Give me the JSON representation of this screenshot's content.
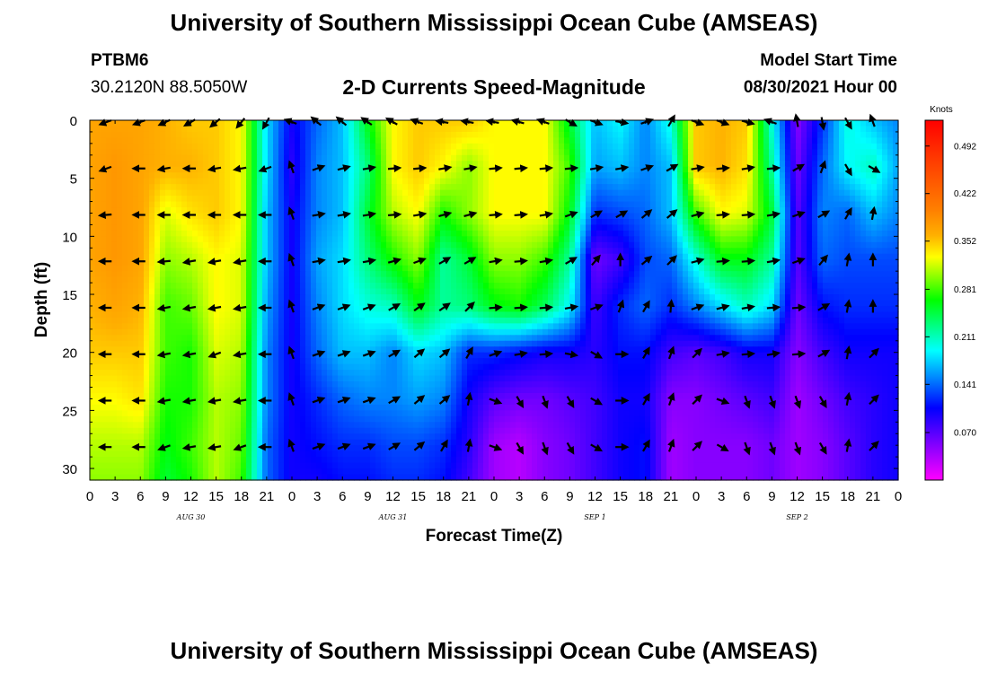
{
  "page": {
    "title_top": "University of Southern Mississippi Ocean Cube (AMSEAS)",
    "title_bottom": "University of Southern Mississippi Ocean Cube (AMSEAS)",
    "station_name": "PTBM6",
    "station_coords": "30.2120N  88.5050W",
    "plot_title": "2-D Currents Speed-Magnitude",
    "model_label": "Model Start Time",
    "model_time": "08/30/2021 Hour 00"
  },
  "colors": {
    "palette": [
      "#ff00ff",
      "#8000ff",
      "#0000ff",
      "#0080ff",
      "#00ffff",
      "#00ff80",
      "#00ff00",
      "#80ff00",
      "#ffff00",
      "#ffb000",
      "#ff8000",
      "#ff4000",
      "#ff0000"
    ]
  },
  "chart_data": {
    "type": "heatmap",
    "subtype": "depth-time current speed with direction arrows",
    "xlabel": "Forecast Time(Z)",
    "ylabel": "Depth (ft)",
    "colorbar_unit": "Knots",
    "x_range_hours": [
      0,
      96
    ],
    "y_range_ft": [
      0,
      31
    ],
    "x_tick_labels": [
      "0",
      "3",
      "6",
      "9",
      "12",
      "15",
      "18",
      "21",
      "0",
      "3",
      "6",
      "9",
      "12",
      "15",
      "18",
      "21",
      "0",
      "3",
      "6",
      "9",
      "12",
      "15",
      "18",
      "21",
      "0",
      "3",
      "6",
      "9",
      "12",
      "15",
      "18",
      "21",
      "0"
    ],
    "y_ticks": [
      0,
      5,
      10,
      15,
      20,
      25,
      30
    ],
    "day_labels": [
      {
        "hour": 12,
        "label": "AUG 30"
      },
      {
        "hour": 36,
        "label": "AUG 31"
      },
      {
        "hour": 60,
        "label": "SEP 1"
      },
      {
        "hour": 84,
        "label": "SEP 2"
      }
    ],
    "colorbar_ticks": [
      "0.492",
      "0.422",
      "0.352",
      "0.281",
      "0.211",
      "0.141",
      "0.070"
    ],
    "colorbar_range": [
      0.0,
      0.53
    ],
    "speed_knots": {
      "depths_ft": [
        0,
        4,
        8,
        12,
        16,
        20,
        24,
        28,
        31
      ],
      "hours": [
        0,
        3,
        6,
        9,
        12,
        15,
        18,
        21,
        24,
        27,
        30,
        33,
        36,
        39,
        42,
        45,
        48,
        51,
        54,
        57,
        60,
        63,
        66,
        69,
        72,
        75,
        78,
        81,
        84,
        87,
        90,
        93,
        96
      ],
      "rows": [
        [
          0.37,
          0.37,
          0.37,
          0.36,
          0.35,
          0.35,
          0.33,
          0.18,
          0.1,
          0.14,
          0.17,
          0.26,
          0.33,
          0.35,
          0.35,
          0.35,
          0.33,
          0.33,
          0.33,
          0.25,
          0.17,
          0.19,
          0.15,
          0.2,
          0.35,
          0.36,
          0.35,
          0.2,
          0.05,
          0.12,
          0.2,
          0.17,
          0.15
        ],
        [
          0.37,
          0.38,
          0.37,
          0.36,
          0.36,
          0.35,
          0.33,
          0.18,
          0.09,
          0.15,
          0.17,
          0.23,
          0.33,
          0.35,
          0.33,
          0.3,
          0.33,
          0.33,
          0.33,
          0.28,
          0.16,
          0.17,
          0.15,
          0.17,
          0.35,
          0.36,
          0.34,
          0.22,
          0.06,
          0.14,
          0.19,
          0.21,
          0.16
        ],
        [
          0.37,
          0.38,
          0.37,
          0.32,
          0.34,
          0.35,
          0.33,
          0.17,
          0.1,
          0.15,
          0.17,
          0.25,
          0.31,
          0.33,
          0.27,
          0.3,
          0.33,
          0.33,
          0.33,
          0.26,
          0.12,
          0.13,
          0.14,
          0.17,
          0.28,
          0.33,
          0.32,
          0.25,
          0.07,
          0.15,
          0.14,
          0.17,
          0.15
        ],
        [
          0.37,
          0.38,
          0.37,
          0.3,
          0.31,
          0.33,
          0.32,
          0.17,
          0.1,
          0.16,
          0.18,
          0.23,
          0.27,
          0.3,
          0.22,
          0.25,
          0.3,
          0.3,
          0.28,
          0.22,
          0.06,
          0.08,
          0.13,
          0.14,
          0.2,
          0.26,
          0.26,
          0.22,
          0.07,
          0.14,
          0.13,
          0.13,
          0.13
        ],
        [
          0.36,
          0.37,
          0.36,
          0.28,
          0.29,
          0.33,
          0.32,
          0.16,
          0.1,
          0.15,
          0.18,
          0.2,
          0.21,
          0.26,
          0.22,
          0.23,
          0.26,
          0.27,
          0.24,
          0.19,
          0.08,
          0.12,
          0.14,
          0.12,
          0.15,
          0.18,
          0.21,
          0.18,
          0.06,
          0.11,
          0.12,
          0.12,
          0.12
        ],
        [
          0.35,
          0.35,
          0.35,
          0.28,
          0.27,
          0.32,
          0.31,
          0.15,
          0.1,
          0.14,
          0.17,
          0.17,
          0.15,
          0.18,
          0.17,
          0.12,
          0.12,
          0.11,
          0.1,
          0.1,
          0.09,
          0.11,
          0.11,
          0.08,
          0.07,
          0.08,
          0.1,
          0.1,
          0.05,
          0.08,
          0.1,
          0.1,
          0.1
        ],
        [
          0.33,
          0.33,
          0.34,
          0.27,
          0.27,
          0.31,
          0.3,
          0.15,
          0.1,
          0.12,
          0.14,
          0.15,
          0.15,
          0.16,
          0.15,
          0.1,
          0.07,
          0.06,
          0.06,
          0.07,
          0.08,
          0.1,
          0.1,
          0.05,
          0.05,
          0.06,
          0.07,
          0.08,
          0.04,
          0.06,
          0.08,
          0.09,
          0.1
        ],
        [
          0.31,
          0.31,
          0.31,
          0.26,
          0.28,
          0.31,
          0.29,
          0.14,
          0.1,
          0.11,
          0.12,
          0.12,
          0.13,
          0.13,
          0.12,
          0.09,
          0.04,
          0.03,
          0.05,
          0.06,
          0.08,
          0.1,
          0.11,
          0.04,
          0.05,
          0.05,
          0.05,
          0.06,
          0.04,
          0.05,
          0.07,
          0.09,
          0.1
        ],
        [
          0.3,
          0.3,
          0.3,
          0.25,
          0.27,
          0.31,
          0.28,
          0.14,
          0.1,
          0.1,
          0.11,
          0.11,
          0.12,
          0.12,
          0.11,
          0.08,
          0.04,
          0.03,
          0.05,
          0.06,
          0.08,
          0.1,
          0.11,
          0.04,
          0.05,
          0.05,
          0.05,
          0.06,
          0.04,
          0.05,
          0.07,
          0.09,
          0.1
        ]
      ]
    },
    "arrows": {
      "hours": [
        2,
        6,
        9,
        12,
        15,
        18,
        21,
        24,
        27,
        30,
        33,
        36,
        39,
        42,
        45,
        48,
        51,
        54,
        57,
        60,
        63,
        66,
        69,
        72,
        75,
        78,
        81,
        84,
        87,
        90,
        93
      ],
      "depths_ft": [
        0,
        4,
        8,
        12,
        16,
        20,
        24,
        28
      ],
      "angles_deg": [
        [
          200,
          200,
          205,
          210,
          220,
          230,
          240,
          160,
          140,
          140,
          145,
          150,
          160,
          170,
          170,
          170,
          165,
          160,
          330,
          340,
          350,
          20,
          60,
          340,
          340,
          345,
          160,
          100,
          280,
          300,
          110
        ],
        [
          200,
          180,
          190,
          180,
          190,
          190,
          200,
          110,
          20,
          15,
          10,
          5,
          5,
          10,
          10,
          5,
          5,
          5,
          5,
          10,
          10,
          20,
          30,
          10,
          5,
          10,
          5,
          30,
          70,
          300,
          330
        ],
        [
          185,
          180,
          180,
          180,
          180,
          180,
          180,
          110,
          10,
          10,
          10,
          5,
          10,
          15,
          15,
          5,
          5,
          10,
          20,
          30,
          30,
          40,
          40,
          15,
          5,
          5,
          10,
          20,
          30,
          60,
          80
        ],
        [
          180,
          180,
          185,
          190,
          190,
          190,
          180,
          110,
          10,
          10,
          10,
          15,
          20,
          30,
          30,
          10,
          5,
          10,
          30,
          50,
          90,
          40,
          45,
          15,
          5,
          5,
          10,
          20,
          50,
          80,
          90
        ],
        [
          180,
          180,
          190,
          190,
          190,
          190,
          180,
          110,
          20,
          20,
          20,
          30,
          35,
          35,
          45,
          5,
          5,
          5,
          10,
          20,
          70,
          60,
          85,
          20,
          15,
          10,
          5,
          5,
          30,
          80,
          90
        ],
        [
          180,
          180,
          190,
          190,
          200,
          190,
          180,
          110,
          20,
          20,
          20,
          30,
          40,
          40,
          60,
          20,
          10,
          5,
          350,
          330,
          0,
          60,
          70,
          45,
          10,
          5,
          10,
          5,
          30,
          80,
          45
        ],
        [
          180,
          180,
          190,
          190,
          190,
          190,
          180,
          110,
          20,
          20,
          20,
          30,
          40,
          40,
          80,
          340,
          300,
          290,
          300,
          330,
          0,
          60,
          70,
          45,
          340,
          290,
          290,
          290,
          300,
          80,
          45
        ],
        [
          180,
          180,
          200,
          190,
          190,
          200,
          180,
          110,
          20,
          20,
          20,
          30,
          40,
          60,
          80,
          340,
          300,
          290,
          300,
          330,
          0,
          60,
          70,
          45,
          330,
          290,
          290,
          290,
          300,
          80,
          45
        ]
      ]
    }
  }
}
